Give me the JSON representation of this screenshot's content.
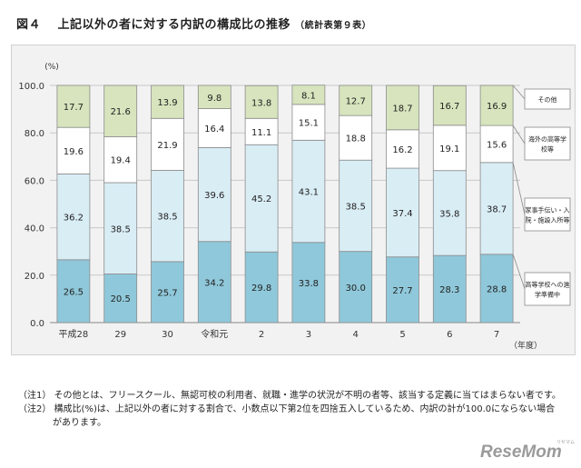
{
  "page": {
    "figure_label": "図４",
    "title": "上記以外の者に対する内訳の構成比の推移",
    "source_ref": "（統計表第９表）",
    "notes": [
      "（注1） その他とは、フリースクール、無認可校の利用者、就職・進学の状況が不明の者等、該当する定義に当てはまらない者です。",
      "（注2） 構成比(%)は、上記以外の者に対する割合で、小数点以下第2位を四捨五入しているため、内訳の計が100.0にならない場合",
      "があります。"
    ],
    "logo_text": "ReseMom",
    "logo_small": "リセマム"
  },
  "chart_data": {
    "type": "bar",
    "stacked": true,
    "categories": [
      "平成28",
      "29",
      "30",
      "令和元",
      "2",
      "3",
      "4",
      "5",
      "6",
      "7"
    ],
    "xlabel": "（年度）",
    "ylabel": "(%)",
    "ylim": [
      0,
      100
    ],
    "yticks": [
      "0.0",
      "20.0",
      "40.0",
      "60.0",
      "80.0",
      "100.0"
    ],
    "grid": true,
    "legend_placement": "right (boxed labels beside the top of each band)",
    "series": [
      {
        "name": "高等学校への進学準備中",
        "color": "#8fc8da",
        "values": [
          26.5,
          20.5,
          25.7,
          34.2,
          29.8,
          33.8,
          30.0,
          27.7,
          28.3,
          28.8
        ]
      },
      {
        "name": "家事手伝い・入院・施設入所等",
        "color": "#d9edf5",
        "values": [
          36.2,
          38.5,
          38.5,
          39.6,
          45.2,
          43.1,
          38.5,
          37.4,
          35.8,
          38.7
        ]
      },
      {
        "name": "海外の高等学校等",
        "color": "#ffffff",
        "values": [
          19.6,
          19.4,
          21.9,
          16.4,
          11.1,
          15.1,
          18.8,
          16.2,
          19.1,
          15.6
        ]
      },
      {
        "name": "その他",
        "color": "#d7e4bd",
        "values": [
          17.7,
          21.6,
          13.9,
          9.8,
          13.8,
          8.1,
          12.7,
          18.7,
          16.7,
          16.9
        ]
      }
    ],
    "legend_lines": [
      [
        "その他"
      ],
      [
        "海外の高等学",
        "校等"
      ],
      [
        "家事手伝い・入",
        "院・施設入所等"
      ],
      [
        "高等学校への進",
        "学準備中"
      ]
    ]
  }
}
